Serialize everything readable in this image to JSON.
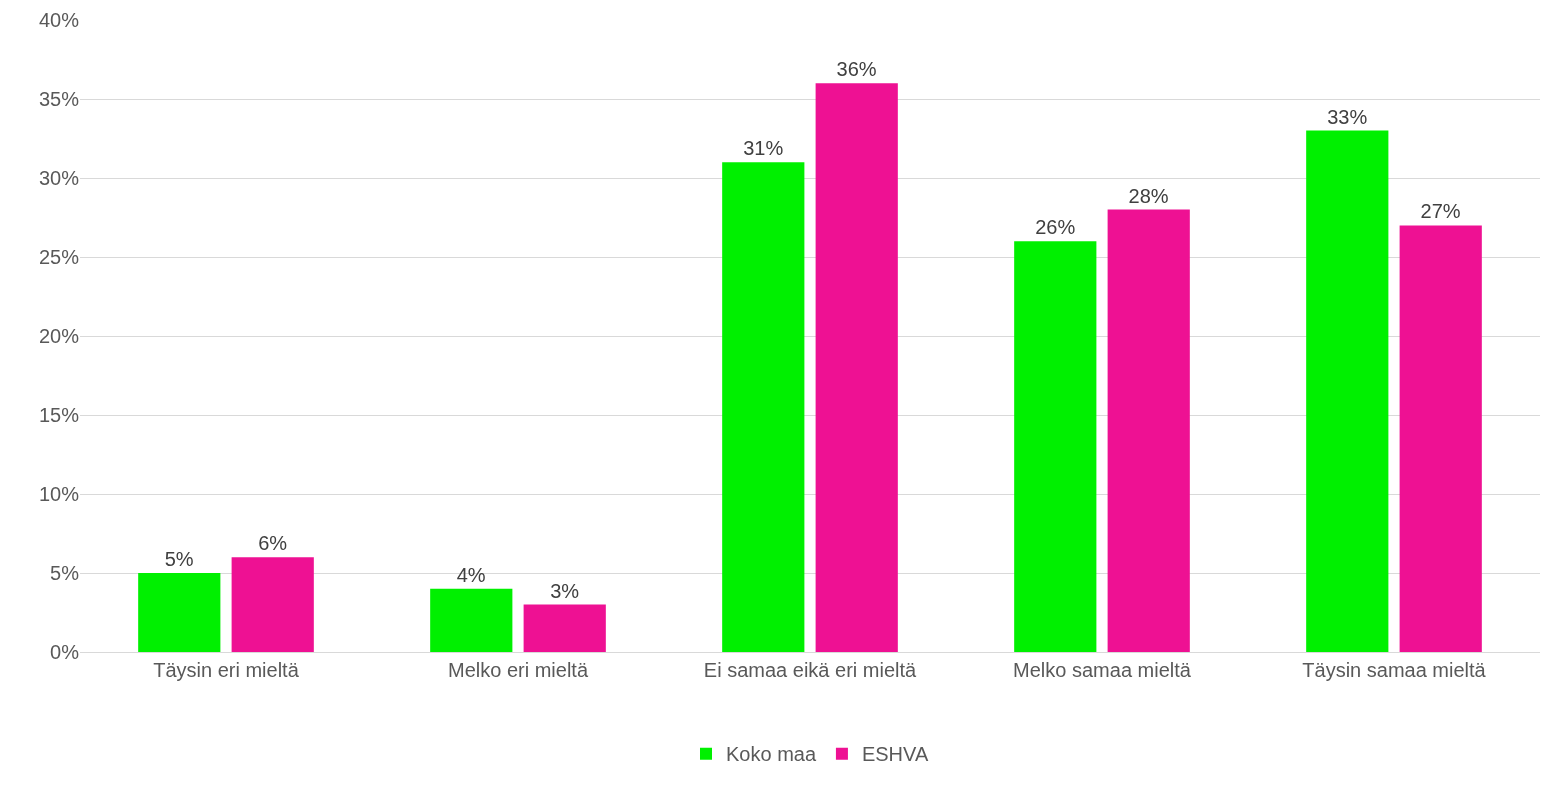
{
  "chart_data": {
    "type": "bar",
    "categories": [
      "Täysin eri mieltä",
      "Melko eri mieltä",
      "Ei samaa eikä eri mieltä",
      "Melko samaa mieltä",
      "Täysin samaa mieltä"
    ],
    "series": [
      {
        "name": "Koko maa",
        "color": "#00f000",
        "values": [
          5,
          4,
          31,
          26,
          33
        ],
        "value_labels": [
          "5%",
          "4%",
          "31%",
          "26%",
          "33%"
        ]
      },
      {
        "name": "ESHVA",
        "color": "#ee1193",
        "values": [
          6,
          3,
          36,
          28,
          27
        ],
        "value_labels": [
          "6%",
          "3%",
          "36%",
          "28%",
          "27%"
        ]
      }
    ],
    "ylim": [
      0,
      40
    ],
    "yticks": [
      {
        "value": 0,
        "label": "0%"
      },
      {
        "value": 5,
        "label": "5%"
      },
      {
        "value": 10,
        "label": "10%"
      },
      {
        "value": 15,
        "label": "15%"
      },
      {
        "value": 20,
        "label": "20%"
      },
      {
        "value": 25,
        "label": "25%"
      },
      {
        "value": 30,
        "label": "30%"
      },
      {
        "value": 35,
        "label": "35%"
      },
      {
        "value": 40,
        "label": "40%"
      }
    ],
    "grid": "y",
    "legend": "bottom"
  }
}
